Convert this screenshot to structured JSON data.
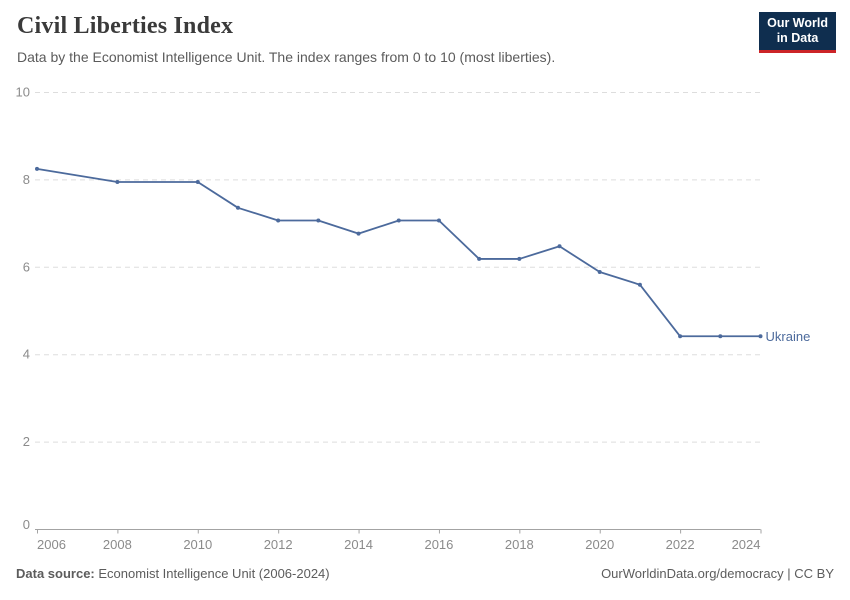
{
  "header": {
    "title": "Civil Liberties Index",
    "subtitle": "Data by the Economist Intelligence Unit. The index ranges from 0 to 10 (most liberties)."
  },
  "logo": {
    "line1": "Our World",
    "line2": "in Data",
    "bg_color": "#0f2e4f",
    "accent_color": "#cc2428"
  },
  "chart_data": {
    "type": "line",
    "title": "Civil Liberties Index",
    "entity": "Ukraine",
    "x": [
      2006,
      2008,
      2010,
      2011,
      2012,
      2013,
      2014,
      2015,
      2016,
      2017,
      2018,
      2019,
      2020,
      2021,
      2022,
      2023,
      2024
    ],
    "values": [
      8.24,
      7.94,
      7.94,
      7.35,
      7.06,
      7.06,
      6.76,
      7.06,
      7.06,
      6.18,
      6.18,
      6.47,
      5.88,
      5.59,
      4.41,
      4.41,
      4.41
    ],
    "xlim": [
      2006,
      2024
    ],
    "ylim": [
      0,
      10
    ],
    "yticks": [
      0,
      2,
      4,
      6,
      8,
      10
    ],
    "xticks": [
      2006,
      2008,
      2010,
      2012,
      2014,
      2016,
      2018,
      2020,
      2022,
      2024
    ],
    "grid": "horizontal dashed",
    "legend_position": "end-of-line label",
    "colors": {
      "line": "#4c6a9c",
      "grid": "#dddddd",
      "axis": "#a3a3a3",
      "tick_labels": "#8b8b8b"
    }
  },
  "footer": {
    "source_label": "Data source:",
    "source_text": "Economist Intelligence Unit (2006-2024)",
    "link": "OurWorldinData.org/democracy",
    "separator": "|",
    "license": "CC BY"
  }
}
